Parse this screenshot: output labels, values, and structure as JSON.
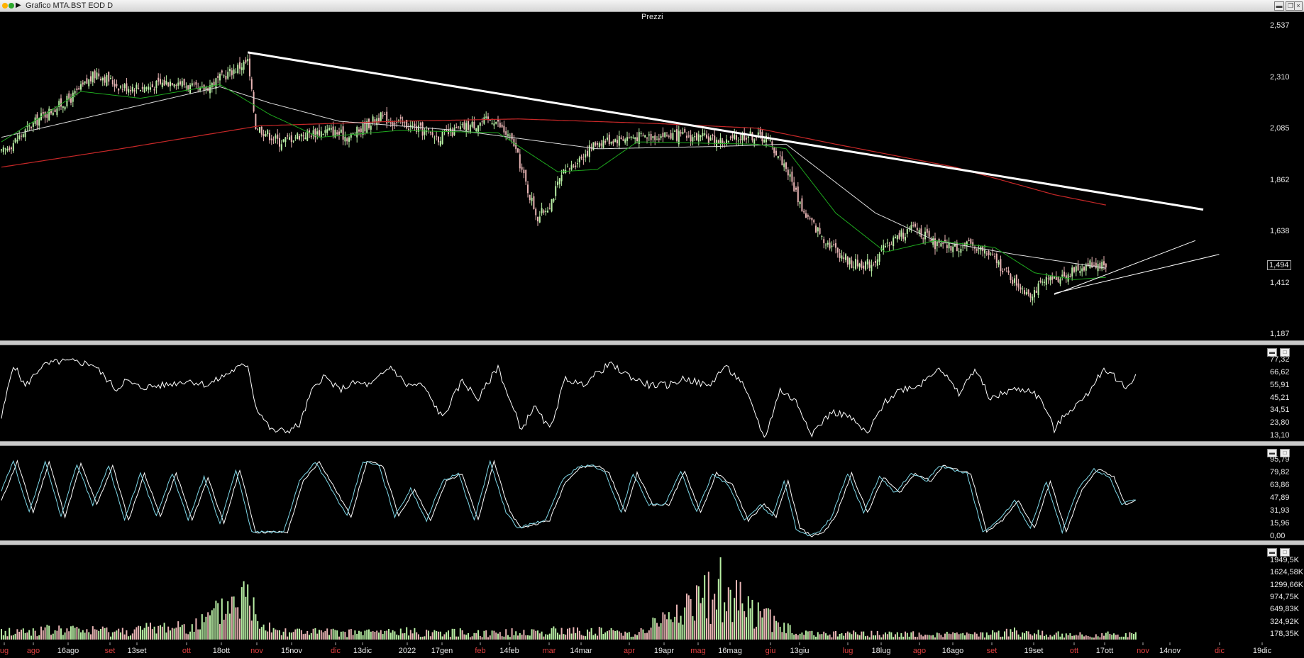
{
  "window": {
    "title": "Grafico MTA.BST EOD D"
  },
  "price_panel": {
    "title": "Prezzi",
    "last_value": "1,494"
  },
  "colors": {
    "up": "#b9f0a5",
    "down": "#e8b4b4",
    "ma_short": "#1ea81e",
    "ma_mid": "#dcdcdc",
    "ma_long": "#c82828",
    "rsi": "#ffffff",
    "stoch_k": "#7fd8e8",
    "stoch_d": "#ffffff",
    "trend": "#ffffff"
  },
  "axes": {
    "price": [
      "2,537",
      "2,310",
      "2,085",
      "1,862",
      "1,638",
      "1,412",
      "1,187"
    ],
    "rsi": [
      "77,32",
      "66,62",
      "55,91",
      "45,21",
      "34,51",
      "23,80",
      "13,10"
    ],
    "stoch": [
      "95,79",
      "79,82",
      "63,86",
      "47,89",
      "31,93",
      "15,96",
      "0,00"
    ],
    "volume": [
      "1949,5K",
      "1624,58K",
      "1299,66K",
      "974,75K",
      "649,83K",
      "324,92K",
      "178,35K"
    ]
  },
  "xaxis": [
    {
      "label": "ug",
      "month": true
    },
    {
      "label": "ago",
      "month": true
    },
    {
      "label": "16ago",
      "month": false
    },
    {
      "label": "set",
      "month": true
    },
    {
      "label": "13set",
      "month": false
    },
    {
      "label": "ott",
      "month": true
    },
    {
      "label": "18ott",
      "month": false
    },
    {
      "label": "nov",
      "month": true
    },
    {
      "label": "15nov",
      "month": false
    },
    {
      "label": "dic",
      "month": true
    },
    {
      "label": "13dic",
      "month": false
    },
    {
      "label": "2022",
      "month": false
    },
    {
      "label": "17gen",
      "month": false
    },
    {
      "label": "feb",
      "month": true
    },
    {
      "label": "14feb",
      "month": false
    },
    {
      "label": "mar",
      "month": true
    },
    {
      "label": "14mar",
      "month": false
    },
    {
      "label": "apr",
      "month": true
    },
    {
      "label": "19apr",
      "month": false
    },
    {
      "label": "mag",
      "month": true
    },
    {
      "label": "16mag",
      "month": false
    },
    {
      "label": "giu",
      "month": true
    },
    {
      "label": "13giu",
      "month": false
    },
    {
      "label": "lug",
      "month": true
    },
    {
      "label": "18lug",
      "month": false
    },
    {
      "label": "ago",
      "month": true
    },
    {
      "label": "16ago",
      "month": false
    },
    {
      "label": "set",
      "month": true
    },
    {
      "label": "19set",
      "month": false
    },
    {
      "label": "ott",
      "month": true
    },
    {
      "label": "17ott",
      "month": false
    },
    {
      "label": "nov",
      "month": true
    },
    {
      "label": "14nov",
      "month": false
    },
    {
      "label": "dic",
      "month": true
    },
    {
      "label": "19dic",
      "month": false
    }
  ],
  "chart_data": [
    {
      "type": "candlestick",
      "title": "Prezzi",
      "ylim": [
        1.187,
        2.537
      ],
      "close_anchors": [
        [
          0,
          1.98
        ],
        [
          20,
          2.14
        ],
        [
          35,
          2.22
        ],
        [
          48,
          2.33
        ],
        [
          60,
          2.27
        ],
        [
          75,
          2.27
        ],
        [
          87,
          2.3
        ],
        [
          100,
          2.25
        ],
        [
          118,
          2.35
        ],
        [
          124,
          2.38
        ],
        [
          128,
          2.1
        ],
        [
          140,
          2.03
        ],
        [
          150,
          2.06
        ],
        [
          165,
          2.08
        ],
        [
          175,
          2.05
        ],
        [
          190,
          2.14
        ],
        [
          205,
          2.1
        ],
        [
          220,
          2.05
        ],
        [
          235,
          2.1
        ],
        [
          248,
          2.13
        ],
        [
          258,
          2.02
        ],
        [
          265,
          1.82
        ],
        [
          270,
          1.7
        ],
        [
          276,
          1.76
        ],
        [
          282,
          1.88
        ],
        [
          290,
          1.95
        ],
        [
          300,
          2.03
        ],
        [
          315,
          2.05
        ],
        [
          335,
          2.06
        ],
        [
          350,
          2.05
        ],
        [
          365,
          2.03
        ],
        [
          375,
          2.06
        ],
        [
          385,
          2.05
        ],
        [
          395,
          1.92
        ],
        [
          404,
          1.72
        ],
        [
          415,
          1.6
        ],
        [
          428,
          1.5
        ],
        [
          438,
          1.5
        ],
        [
          448,
          1.6
        ],
        [
          460,
          1.66
        ],
        [
          470,
          1.58
        ],
        [
          480,
          1.57
        ],
        [
          490,
          1.58
        ],
        [
          500,
          1.52
        ],
        [
          510,
          1.42
        ],
        [
          518,
          1.37
        ],
        [
          526,
          1.42
        ],
        [
          538,
          1.46
        ],
        [
          548,
          1.5
        ],
        [
          556,
          1.494
        ]
      ],
      "ma_short_anchors": [
        [
          0,
          2.03
        ],
        [
          40,
          2.25
        ],
        [
          70,
          2.22
        ],
        [
          110,
          2.28
        ],
        [
          135,
          2.15
        ],
        [
          160,
          2.05
        ],
        [
          200,
          2.08
        ],
        [
          250,
          2.07
        ],
        [
          280,
          1.9
        ],
        [
          300,
          1.91
        ],
        [
          320,
          2.03
        ],
        [
          380,
          2.02
        ],
        [
          395,
          2.0
        ],
        [
          420,
          1.72
        ],
        [
          445,
          1.55
        ],
        [
          470,
          1.6
        ],
        [
          500,
          1.57
        ],
        [
          520,
          1.46
        ],
        [
          540,
          1.43
        ],
        [
          556,
          1.44
        ]
      ],
      "ma_mid_anchors": [
        [
          0,
          2.05
        ],
        [
          60,
          2.17
        ],
        [
          110,
          2.27
        ],
        [
          135,
          2.2
        ],
        [
          170,
          2.12
        ],
        [
          230,
          2.08
        ],
        [
          300,
          2.0
        ],
        [
          360,
          2.01
        ],
        [
          395,
          2.02
        ],
        [
          440,
          1.72
        ],
        [
          470,
          1.6
        ],
        [
          510,
          1.54
        ],
        [
          556,
          1.48
        ]
      ],
      "ma_long_anchors": [
        [
          0,
          1.92
        ],
        [
          60,
          2.0
        ],
        [
          130,
          2.1
        ],
        [
          200,
          2.12
        ],
        [
          260,
          2.13
        ],
        [
          330,
          2.11
        ],
        [
          380,
          2.09
        ],
        [
          420,
          2.02
        ],
        [
          480,
          1.92
        ],
        [
          530,
          1.8
        ],
        [
          556,
          1.755
        ]
      ],
      "trendlines": [
        {
          "from": [
            124,
            2.42
          ],
          "to": [
            605,
            1.735
          ]
        },
        {
          "from": [
            530,
            1.365
          ],
          "to": [
            601,
            1.6
          ]
        },
        {
          "from": [
            530,
            1.37
          ],
          "to": [
            613,
            1.54
          ]
        }
      ]
    },
    {
      "type": "line",
      "title": "",
      "ylim": [
        13.1,
        77.32
      ],
      "series": [
        {
          "values_anchors": [
            [
              0,
              28
            ],
            [
              6,
              74
            ],
            [
              12,
              55
            ],
            [
              20,
              72
            ],
            [
              28,
              76
            ],
            [
              36,
              76
            ],
            [
              46,
              74
            ],
            [
              58,
              52
            ],
            [
              62,
              60
            ],
            [
              70,
              54
            ],
            [
              82,
              56
            ],
            [
              94,
              60
            ],
            [
              104,
              56
            ],
            [
              110,
              62
            ],
            [
              118,
              70
            ],
            [
              124,
              74
            ],
            [
              128,
              38
            ],
            [
              136,
              17
            ],
            [
              144,
              17
            ],
            [
              150,
              22
            ],
            [
              156,
              50
            ],
            [
              162,
              64
            ],
            [
              170,
              52
            ],
            [
              178,
              58
            ],
            [
              186,
              56
            ],
            [
              196,
              72
            ],
            [
              204,
              56
            ],
            [
              212,
              56
            ],
            [
              222,
              28
            ],
            [
              232,
              60
            ],
            [
              240,
              44
            ],
            [
              250,
              72
            ],
            [
              256,
              42
            ],
            [
              262,
              18
            ],
            [
              268,
              38
            ],
            [
              276,
              18
            ],
            [
              284,
              62
            ],
            [
              292,
              56
            ],
            [
              300,
              66
            ],
            [
              306,
              74
            ],
            [
              318,
              62
            ],
            [
              326,
              56
            ],
            [
              336,
              56
            ],
            [
              344,
              62
            ],
            [
              356,
              55
            ],
            [
              364,
              72
            ],
            [
              372,
              60
            ],
            [
              380,
              30
            ],
            [
              384,
              10
            ],
            [
              392,
              52
            ],
            [
              400,
              42
            ],
            [
              408,
              15
            ],
            [
              418,
              33
            ],
            [
              426,
              30
            ],
            [
              436,
              14
            ],
            [
              444,
              40
            ],
            [
              452,
              52
            ],
            [
              462,
              56
            ],
            [
              472,
              72
            ],
            [
              482,
              48
            ],
            [
              490,
              70
            ],
            [
              498,
              44
            ],
            [
              508,
              52
            ],
            [
              518,
              52
            ],
            [
              524,
              42
            ],
            [
              530,
              18
            ],
            [
              536,
              32
            ],
            [
              546,
              46
            ],
            [
              552,
              64
            ],
            [
              556,
              70
            ],
            [
              560,
              64
            ],
            [
              566,
              53
            ],
            [
              571,
              65
            ]
          ]
        }
      ]
    },
    {
      "type": "line",
      "title": "",
      "ylim": [
        0,
        95.79
      ],
      "series": [
        {
          "values_anchors": [
            [
              0,
              45
            ],
            [
              8,
              95
            ],
            [
              16,
              30
            ],
            [
              24,
              95
            ],
            [
              32,
              25
            ],
            [
              40,
              92
            ],
            [
              48,
              40
            ],
            [
              56,
              90
            ],
            [
              64,
              20
            ],
            [
              72,
              80
            ],
            [
              80,
              25
            ],
            [
              88,
              80
            ],
            [
              96,
              20
            ],
            [
              104,
              75
            ],
            [
              112,
              15
            ],
            [
              120,
              85
            ],
            [
              128,
              5
            ],
            [
              136,
              5
            ],
            [
              144,
              5
            ],
            [
              152,
              70
            ],
            [
              160,
              95
            ],
            [
              168,
              60
            ],
            [
              176,
              25
            ],
            [
              184,
              95
            ],
            [
              192,
              90
            ],
            [
              200,
              25
            ],
            [
              208,
              60
            ],
            [
              216,
              20
            ],
            [
              224,
              70
            ],
            [
              232,
              80
            ],
            [
              240,
              20
            ],
            [
              248,
              95
            ],
            [
              256,
              30
            ],
            [
              262,
              10
            ],
            [
              268,
              15
            ],
            [
              276,
              20
            ],
            [
              284,
              70
            ],
            [
              292,
              88
            ],
            [
              300,
              90
            ],
            [
              306,
              80
            ],
            [
              314,
              30
            ],
            [
              320,
              80
            ],
            [
              328,
              40
            ],
            [
              336,
              40
            ],
            [
              344,
              82
            ],
            [
              352,
              30
            ],
            [
              360,
              80
            ],
            [
              368,
              65
            ],
            [
              376,
              20
            ],
            [
              384,
              40
            ],
            [
              390,
              25
            ],
            [
              396,
              70
            ],
            [
              402,
              10
            ],
            [
              408,
              0
            ],
            [
              414,
              5
            ],
            [
              420,
              25
            ],
            [
              428,
              80
            ],
            [
              436,
              30
            ],
            [
              444,
              75
            ],
            [
              452,
              55
            ],
            [
              460,
              80
            ],
            [
              468,
              70
            ],
            [
              474,
              90
            ],
            [
              480,
              85
            ],
            [
              488,
              80
            ],
            [
              496,
              5
            ],
            [
              504,
              20
            ],
            [
              512,
              45
            ],
            [
              520,
              10
            ],
            [
              528,
              70
            ],
            [
              536,
              5
            ],
            [
              544,
              60
            ],
            [
              552,
              85
            ],
            [
              560,
              75
            ],
            [
              566,
              40
            ],
            [
              571,
              45
            ]
          ]
        }
      ]
    },
    {
      "type": "bar",
      "title": "",
      "ylim": [
        0,
        1949.5
      ],
      "anchors": [
        [
          0,
          250
        ],
        [
          30,
          320
        ],
        [
          60,
          280
        ],
        [
          100,
          520
        ],
        [
          110,
          900
        ],
        [
          118,
          1350
        ],
        [
          124,
          1400
        ],
        [
          130,
          700
        ],
        [
          140,
          300
        ],
        [
          170,
          220
        ],
        [
          200,
          260
        ],
        [
          250,
          220
        ],
        [
          290,
          300
        ],
        [
          320,
          220
        ],
        [
          362,
          1600
        ],
        [
          400,
          200
        ],
        [
          450,
          180
        ],
        [
          490,
          160
        ],
        [
          510,
          260
        ],
        [
          540,
          150
        ],
        [
          560,
          170
        ],
        [
          571,
          178.35
        ]
      ]
    }
  ]
}
